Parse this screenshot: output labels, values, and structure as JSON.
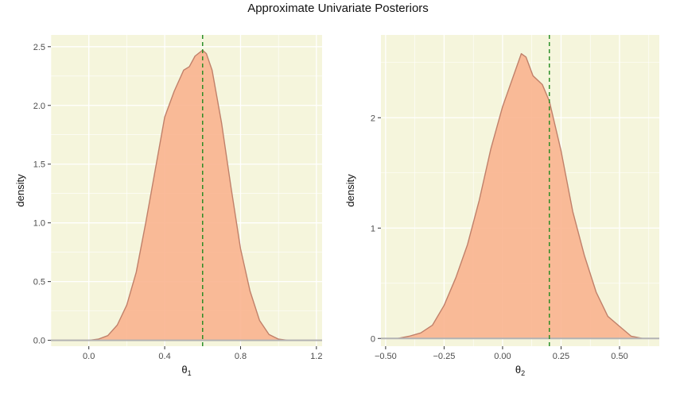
{
  "title": "Approximate Univariate Posteriors",
  "colors": {
    "panel_bg": "#f5f5dc",
    "fill": "#f9b48f",
    "outline": "#c0806a",
    "vline": "#1f8a1f",
    "baseline": "#b3b3b3",
    "gridline": "#ffffff"
  },
  "chart_data": [
    {
      "type": "area",
      "ylabel": "density",
      "xlabel_symbol": "θ",
      "xlabel_subscript": "1",
      "xlim": [
        -0.2,
        1.23
      ],
      "ylim": [
        -0.05,
        2.6
      ],
      "xticks": [
        0.0,
        0.4,
        0.8,
        1.2
      ],
      "xtick_labels": [
        "0.0",
        "0.4",
        "0.8",
        "1.2"
      ],
      "yticks": [
        0.0,
        0.5,
        1.0,
        1.5,
        2.0,
        2.5
      ],
      "ytick_labels": [
        "0.0",
        "0.5",
        "1.0",
        "1.5",
        "2.0",
        "2.5"
      ],
      "vline": 0.6,
      "density": {
        "x": [
          -0.2,
          0.0,
          0.05,
          0.1,
          0.15,
          0.2,
          0.25,
          0.3,
          0.35,
          0.4,
          0.45,
          0.5,
          0.53,
          0.56,
          0.6,
          0.62,
          0.65,
          0.7,
          0.75,
          0.8,
          0.85,
          0.9,
          0.95,
          1.0,
          1.05,
          1.1,
          1.23
        ],
        "y": [
          0.0,
          0.0,
          0.01,
          0.04,
          0.13,
          0.3,
          0.58,
          1.0,
          1.45,
          1.9,
          2.12,
          2.3,
          2.33,
          2.42,
          2.47,
          2.44,
          2.3,
          1.85,
          1.3,
          0.78,
          0.42,
          0.17,
          0.05,
          0.01,
          0.0,
          0.0,
          0.0
        ]
      }
    },
    {
      "type": "area",
      "ylabel": "density",
      "xlabel_symbol": "θ",
      "xlabel_subscript": "2",
      "xlim": [
        -0.52,
        0.67
      ],
      "ylim": [
        -0.07,
        2.75
      ],
      "xticks": [
        -0.5,
        -0.25,
        0.0,
        0.25,
        0.5
      ],
      "xtick_labels": [
        "−0.50",
        "−0.25",
        "0.00",
        "0.25",
        "0.50"
      ],
      "yticks": [
        0,
        1,
        2
      ],
      "ytick_labels": [
        "0",
        "1",
        "2"
      ],
      "vline": 0.2,
      "density": {
        "x": [
          -0.52,
          -0.45,
          -0.4,
          -0.35,
          -0.3,
          -0.25,
          -0.2,
          -0.15,
          -0.1,
          -0.05,
          0.0,
          0.05,
          0.08,
          0.1,
          0.13,
          0.17,
          0.2,
          0.25,
          0.3,
          0.35,
          0.4,
          0.45,
          0.5,
          0.55,
          0.6,
          0.67
        ],
        "y": [
          0.0,
          0.0,
          0.02,
          0.05,
          0.12,
          0.3,
          0.55,
          0.85,
          1.25,
          1.72,
          2.1,
          2.4,
          2.58,
          2.55,
          2.38,
          2.3,
          2.15,
          1.7,
          1.15,
          0.75,
          0.42,
          0.2,
          0.11,
          0.02,
          0.0,
          0.0
        ]
      }
    }
  ]
}
